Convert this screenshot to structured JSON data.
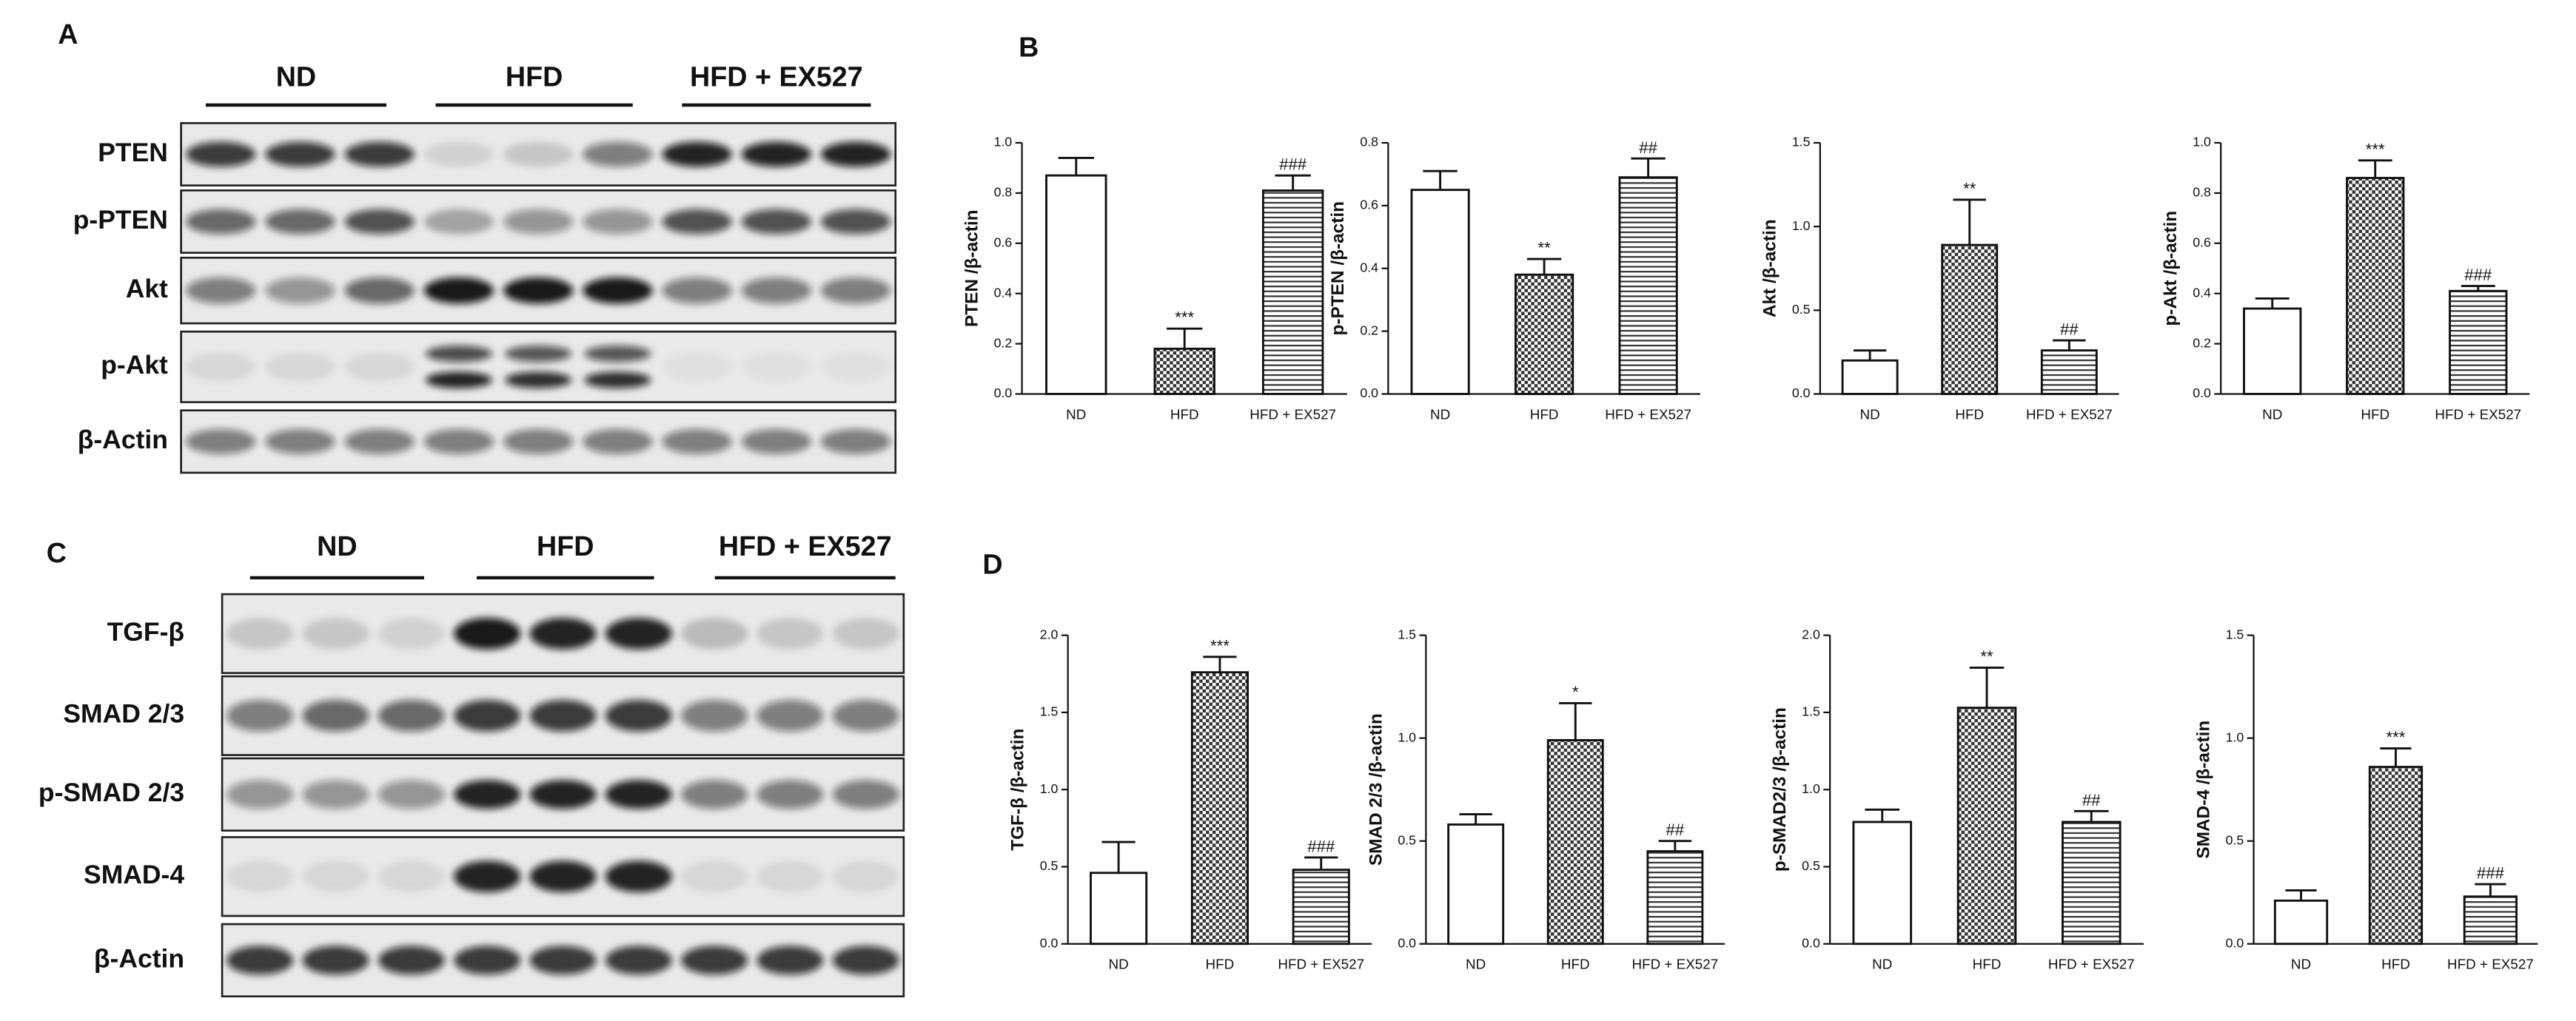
{
  "panel_labels": [
    "A",
    "B",
    "C",
    "D"
  ],
  "blots": [
    {
      "groups": [
        "ND",
        "HFD",
        "HFD + EX527"
      ],
      "proteins": [
        "PTEN",
        "p-PTEN",
        "Akt",
        "p-Akt",
        "β-Actin"
      ]
    },
    {
      "groups": [
        "ND",
        "HFD",
        "HFD + EX527"
      ],
      "proteins": [
        "TGF-β",
        "SMAD 2/3",
        "p-SMAD 2/3",
        "SMAD-4",
        "β-Actin"
      ]
    }
  ],
  "chart_data": [
    {
      "type": "bar",
      "ylabel": "PTEN /β-actin",
      "categories": [
        "ND",
        "HFD",
        "HFD + EX527"
      ],
      "values": [
        0.87,
        0.18,
        0.81
      ],
      "errors": [
        0.07,
        0.08,
        0.06
      ],
      "annotations": [
        null,
        "***",
        "###"
      ],
      "ylim": [
        0,
        1
      ],
      "yticks": [
        {
          "value": 0,
          "label": "0.0"
        },
        0.2,
        0.4,
        0.6,
        0.8,
        {
          "value": 1,
          "label": "1.0"
        }
      ]
    },
    {
      "type": "bar",
      "ylabel": "p-PTEN /β-actin",
      "categories": [
        "ND",
        "HFD",
        "HFD + EX527"
      ],
      "values": [
        0.65,
        0.38,
        0.69
      ],
      "errors": [
        0.06,
        0.05,
        0.06
      ],
      "annotations": [
        null,
        "**",
        "##"
      ],
      "ylim": [
        0,
        0.8
      ],
      "yticks": [
        {
          "value": 0,
          "label": "0.0"
        },
        0.2,
        0.4,
        0.6,
        0.8
      ]
    },
    {
      "type": "bar",
      "ylabel": "Akt /β-actin",
      "categories": [
        "ND",
        "HFD",
        "HFD + EX527"
      ],
      "values": [
        0.2,
        0.89,
        0.26
      ],
      "errors": [
        0.06,
        0.27,
        0.06
      ],
      "annotations": [
        null,
        "**",
        "##"
      ],
      "ylim": [
        0,
        1.5
      ],
      "yticks": [
        {
          "value": 0,
          "label": "0.0"
        },
        0.5,
        {
          "value": 1,
          "label": "1.0"
        },
        1.5
      ]
    },
    {
      "type": "bar",
      "ylabel": "p-Akt /β-actin",
      "categories": [
        "ND",
        "HFD",
        "HFD + EX527"
      ],
      "values": [
        0.34,
        0.86,
        0.41
      ],
      "errors": [
        0.04,
        0.07,
        0.02
      ],
      "annotations": [
        null,
        "***",
        "###"
      ],
      "ylim": [
        0,
        1
      ],
      "yticks": [
        {
          "value": 0,
          "label": "0.0"
        },
        0.2,
        0.4,
        0.6,
        0.8,
        {
          "value": 1,
          "label": "1.0"
        }
      ]
    },
    {
      "type": "bar",
      "ylabel": "TGF-β /β-actin",
      "categories": [
        "ND",
        "HFD",
        "HFD + EX527"
      ],
      "values": [
        0.46,
        1.76,
        0.48
      ],
      "errors": [
        0.2,
        0.1,
        0.08
      ],
      "annotations": [
        null,
        "***",
        "###"
      ],
      "ylim": [
        0,
        2
      ],
      "yticks": [
        {
          "value": 0,
          "label": "0.0"
        },
        0.5,
        {
          "value": 1,
          "label": "1.0"
        },
        1.5,
        {
          "value": 2,
          "label": "2.0"
        }
      ]
    },
    {
      "type": "bar",
      "ylabel": "SMAD 2/3 /β-actin",
      "categories": [
        "ND",
        "HFD",
        "HFD + EX527"
      ],
      "values": [
        0.58,
        0.99,
        0.45
      ],
      "errors": [
        0.05,
        0.18,
        0.05
      ],
      "annotations": [
        null,
        "*",
        "##"
      ],
      "ylim": [
        0,
        1.5
      ],
      "yticks": [
        {
          "value": 0,
          "label": "0.0"
        },
        0.5,
        {
          "value": 1,
          "label": "1.0"
        },
        1.5
      ]
    },
    {
      "type": "bar",
      "ylabel": "p-SMAD2/3 /β-actin",
      "categories": [
        "ND",
        "HFD",
        "HFD + EX527"
      ],
      "values": [
        0.79,
        1.53,
        0.79
      ],
      "errors": [
        0.08,
        0.26,
        0.07
      ],
      "annotations": [
        null,
        "**",
        "##"
      ],
      "ylim": [
        0,
        2
      ],
      "yticks": [
        {
          "value": 0,
          "label": "0.0"
        },
        0.5,
        {
          "value": 1,
          "label": "1.0"
        },
        1.5,
        {
          "value": 2,
          "label": "2.0"
        }
      ]
    },
    {
      "type": "bar",
      "ylabel": "SMAD-4 /β-actin",
      "categories": [
        "ND",
        "HFD",
        "HFD + EX527"
      ],
      "values": [
        0.21,
        0.86,
        0.23
      ],
      "errors": [
        0.05,
        0.09,
        0.06
      ],
      "annotations": [
        null,
        "***",
        "###"
      ],
      "ylim": [
        0,
        1.5
      ],
      "yticks": [
        {
          "value": 0,
          "label": "0.0"
        },
        0.5,
        {
          "value": 1,
          "label": "1.0"
        },
        1.5
      ]
    }
  ]
}
